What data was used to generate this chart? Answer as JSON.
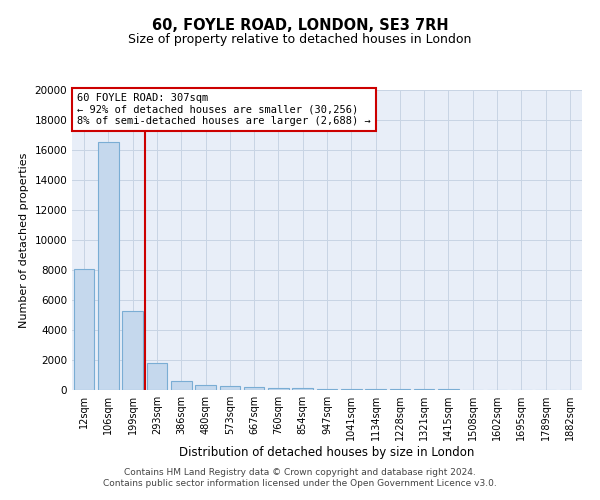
{
  "title": "60, FOYLE ROAD, LONDON, SE3 7RH",
  "subtitle": "Size of property relative to detached houses in London",
  "xlabel": "Distribution of detached houses by size in London",
  "ylabel": "Number of detached properties",
  "bar_color": "#c5d8ed",
  "bar_edge_color": "#7aadd4",
  "categories": [
    "12sqm",
    "106sqm",
    "199sqm",
    "293sqm",
    "386sqm",
    "480sqm",
    "573sqm",
    "667sqm",
    "760sqm",
    "854sqm",
    "947sqm",
    "1041sqm",
    "1134sqm",
    "1228sqm",
    "1321sqm",
    "1415sqm",
    "1508sqm",
    "1602sqm",
    "1695sqm",
    "1789sqm",
    "1882sqm"
  ],
  "values": [
    8050,
    16550,
    5300,
    1800,
    620,
    360,
    255,
    200,
    155,
    110,
    90,
    75,
    60,
    50,
    40,
    35,
    30,
    25,
    20,
    18,
    15
  ],
  "ylim": [
    0,
    20000
  ],
  "yticks": [
    0,
    2000,
    4000,
    6000,
    8000,
    10000,
    12000,
    14000,
    16000,
    18000,
    20000
  ],
  "vline_color": "#cc0000",
  "vline_pos": 2.5,
  "annotation_text": "60 FOYLE ROAD: 307sqm\n← 92% of detached houses are smaller (30,256)\n8% of semi-detached houses are larger (2,688) →",
  "footer_text": "Contains HM Land Registry data © Crown copyright and database right 2024.\nContains public sector information licensed under the Open Government Licence v3.0.",
  "bg_color": "#ffffff",
  "plot_bg_color": "#e8eef8",
  "grid_color": "#c8d4e4"
}
